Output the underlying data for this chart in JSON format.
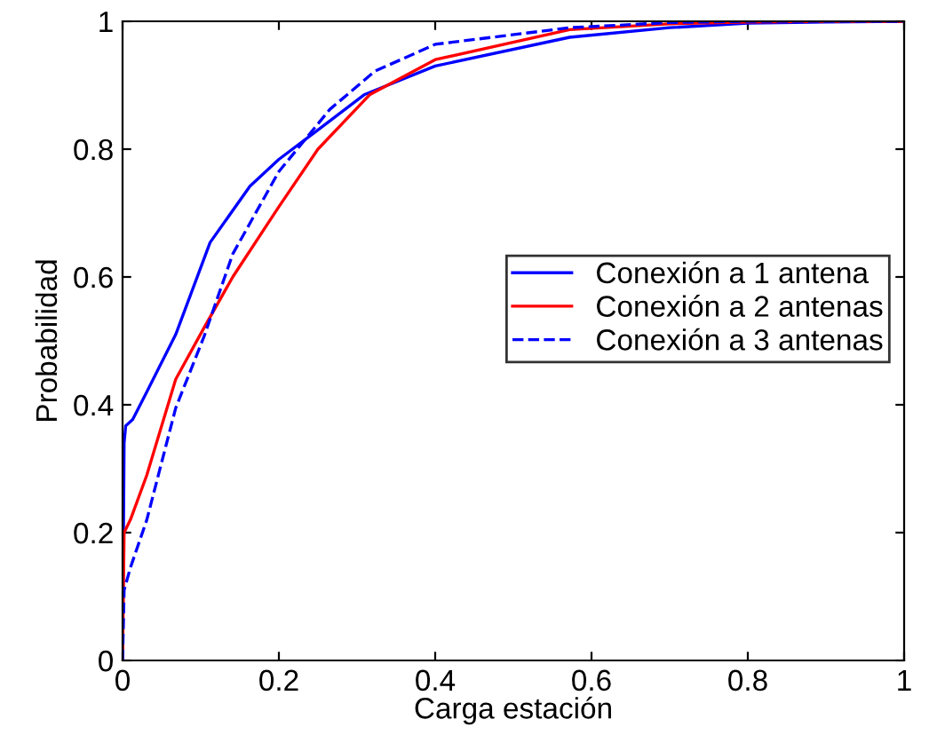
{
  "chart_data": {
    "type": "line",
    "xlabel": "Carga estación",
    "ylabel": "Probabilidad",
    "xlim": [
      0,
      1
    ],
    "ylim": [
      0,
      1
    ],
    "xticks": [
      0,
      0.2,
      0.4,
      0.6,
      0.8,
      1
    ],
    "yticks": [
      0,
      0.2,
      0.4,
      0.6,
      0.8,
      1
    ],
    "grid": false,
    "legend": "right",
    "marker": "none",
    "series": [
      {
        "name": "Conexión a 1 antena",
        "color": "#0000ff",
        "line_style": "solid",
        "x": [
          0,
          0.002,
          0.004,
          0.013,
          0.031,
          0.068,
          0.112,
          0.163,
          0.2,
          0.25,
          0.309,
          0.4,
          0.572,
          0.7,
          0.8,
          0.9,
          1
        ],
        "values": [
          0,
          0.34,
          0.367,
          0.377,
          0.42,
          0.51,
          0.654,
          0.742,
          0.784,
          0.83,
          0.885,
          0.93,
          0.975,
          0.99,
          0.997,
          0.999,
          1
        ]
      },
      {
        "name": "Conexión a 2 antenas",
        "color": "#ff0000",
        "line_style": "solid",
        "x": [
          0,
          0.002,
          0.01,
          0.031,
          0.068,
          0.104,
          0.141,
          0.2,
          0.25,
          0.316,
          0.4,
          0.572,
          0.7,
          0.8,
          0.9,
          1
        ],
        "values": [
          0,
          0.2,
          0.22,
          0.29,
          0.44,
          0.52,
          0.6,
          0.71,
          0.8,
          0.885,
          0.94,
          0.987,
          0.996,
          0.999,
          1,
          1
        ]
      },
      {
        "name": "Conexión a 3 antenas",
        "color": "#0000ff",
        "line_style": "dashed",
        "x": [
          0,
          0.002,
          0.01,
          0.031,
          0.068,
          0.104,
          0.141,
          0.2,
          0.265,
          0.323,
          0.4,
          0.572,
          0.7,
          0.8,
          0.9,
          1
        ],
        "values": [
          0,
          0.11,
          0.145,
          0.22,
          0.395,
          0.506,
          0.636,
          0.765,
          0.862,
          0.922,
          0.964,
          0.99,
          0.998,
          1,
          1,
          1
        ]
      }
    ]
  }
}
